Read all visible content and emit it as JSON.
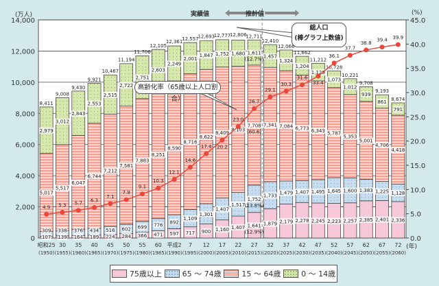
{
  "chart_data": {
    "type": "bar",
    "stacked": true,
    "categories": [
      "昭和25",
      "30",
      "35",
      "40",
      "45",
      "50",
      "55",
      "60",
      "平成2",
      "7",
      "12",
      "17",
      "22",
      "27",
      "32",
      "37",
      "42",
      "47",
      "52",
      "57",
      "62",
      "67",
      "72"
    ],
    "categories_western": [
      "(1950)",
      "(1955)",
      "(1960)",
      "(1965)",
      "(1970)",
      "(1975)",
      "(1980)",
      "(1985)",
      "(1990)",
      "(1995)",
      "(2000)",
      "(2005)",
      "(2010)",
      "(2015)",
      "(2020)",
      "(2025)",
      "(2030)",
      "(2035)",
      "(2040)",
      "(2045)",
      "(2050)",
      "(2055)",
      "(2060)"
    ],
    "series": [
      {
        "name": "75歳以上",
        "color": "#f6c8da",
        "values": [
          107,
          139,
          164,
          189,
          224,
          284,
          366,
          471,
          597,
          717,
          900,
          1160,
          1407,
          1641,
          1879,
          2179,
          2278,
          2245,
          2223,
          2257,
          2385,
          2401,
          2336
        ]
      },
      {
        "name": "65 ～ 74歳",
        "color": "#c6ddf0",
        "values": [
          309,
          338,
          376,
          434,
          516,
          602,
          699,
          776,
          892,
          1109,
          1301,
          1407,
          1517,
          1752,
          1733,
          1479,
          1407,
          1495,
          1645,
          1600,
          1383,
          1225,
          1128
        ]
      },
      {
        "name": "15 ～ 64歳",
        "color": "#f3a092",
        "values": [
          5017,
          5517,
          6047,
          6744,
          7212,
          7581,
          7883,
          8251,
          8590,
          8716,
          8622,
          8409,
          8103,
          7708,
          7341,
          7084,
          6773,
          6343,
          5787,
          5353,
          5001,
          4706,
          4418
        ]
      },
      {
        "name": "0 ～ 14歳",
        "color": "#d6e7ad",
        "values": [
          2979,
          3012,
          2843,
          2553,
          2515,
          2722,
          2751,
          2603,
          2249,
          2001,
          1847,
          1752,
          1680,
          1611,
          1457,
          1324,
          1204,
          1129,
          1073,
          1012,
          939,
          861,
          791
        ]
      }
    ],
    "totals": [
      8411,
      9008,
      9430,
      9921,
      10467,
      11194,
      11706,
      12105,
      12361,
      12557,
      12693,
      12777,
      12806,
      12711,
      12410,
      12066,
      11662,
      11212,
      10728,
      10221,
      9708,
      9193,
      8674
    ],
    "line": {
      "name": "高齢化率（65歳以上人口割合）",
      "color": "#e8473a",
      "values": [
        4.9,
        5.3,
        5.7,
        6.3,
        7.1,
        7.9,
        9.1,
        10.3,
        12.1,
        14.6,
        17.4,
        20.2,
        23.0,
        26.7,
        29.1,
        30.3,
        31.6,
        33.4,
        36.1,
        37.7,
        38.8,
        39.4,
        39.9
      ]
    },
    "annotations_2015": {
      "age75_pct": "(12.9%)",
      "age65_74_pct": "(13.8%)",
      "age15_64_pct": "(60.6)",
      "age0_14_pct": "(12.7%)"
    },
    "ylabel": "(万人)",
    "ylim": [
      0,
      14000
    ],
    "yticks": [
      "0",
      "2,000",
      "4,000",
      "6,000",
      "8,000",
      "10,000",
      "12,000",
      "14,000"
    ],
    "y2label": "(%)",
    "y2lim": [
      0,
      45
    ],
    "y2ticks": [
      "0.0",
      "5.0",
      "10.0",
      "15.0",
      "20.0",
      "25.0",
      "30.0",
      "35.0",
      "40.0",
      "45.0"
    ],
    "xunit": "(年)",
    "actual_label": "実績値",
    "projection_label": "推計値",
    "total_callout": [
      "総人口",
      "(棒グラフ上数値)"
    ],
    "rate_callout": "高齢化率（65歳以上人口割合）",
    "grid": true,
    "legend": "bottom"
  }
}
